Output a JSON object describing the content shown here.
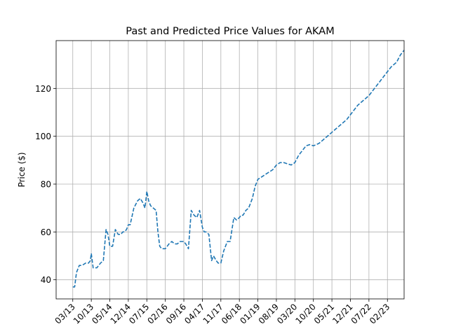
{
  "chart_data": {
    "type": "line",
    "title": "Past and Predicted Price Values for AKAM",
    "xlabel": "",
    "ylabel": "Price ($)",
    "x_ticks": [
      "03/13",
      "10/13",
      "05/14",
      "12/14",
      "07/15",
      "02/16",
      "09/16",
      "04/17",
      "11/17",
      "06/18",
      "01/19",
      "08/19",
      "03/20",
      "10/20",
      "05/21",
      "12/21",
      "07/22",
      "02/23"
    ],
    "y_ticks": [
      40,
      60,
      80,
      100,
      120
    ],
    "ylim": [
      32,
      140
    ],
    "xlim": [
      -0.9,
      17.9
    ],
    "grid": true,
    "series": [
      {
        "line_style": "dashed",
        "color": "#1f77b4",
        "x": [
          0,
          0.1,
          0.2,
          0.35,
          0.5,
          0.7,
          0.85,
          0.95,
          1.0,
          1.1,
          1.3,
          1.5,
          1.65,
          1.8,
          1.9,
          2.0,
          2.15,
          2.3,
          2.45,
          2.6,
          2.7,
          2.8,
          2.9,
          3.0,
          3.1,
          3.3,
          3.5,
          3.65,
          3.8,
          3.9,
          4.0,
          4.1,
          4.2,
          4.35,
          4.5,
          4.6,
          4.7,
          4.8,
          5.0,
          5.2,
          5.35,
          5.5,
          5.65,
          5.8,
          6.0,
          6.1,
          6.25,
          6.4,
          6.55,
          6.7,
          6.85,
          7.0,
          7.1,
          7.2,
          7.35,
          7.5,
          7.6,
          7.75,
          7.85,
          8.0,
          8.15,
          8.35,
          8.5,
          8.7,
          8.85,
          9.0,
          9.1,
          9.2,
          9.35,
          9.5,
          9.7,
          9.85,
          10.0,
          10.2,
          10.4,
          10.6,
          10.8,
          11.0,
          11.2,
          11.4,
          11.6,
          11.8,
          12.0,
          12.2,
          12.4,
          12.6,
          12.8,
          13.0,
          13.3,
          13.6,
          13.9,
          14.2,
          14.5,
          14.8,
          15.1,
          15.4,
          15.7,
          16.0,
          16.3,
          16.6,
          16.9,
          17.2,
          17.5,
          17.7,
          17.9
        ],
        "y": [
          37,
          37,
          43,
          46,
          46,
          47,
          47,
          48,
          51,
          45,
          45,
          47,
          48,
          61,
          59,
          54,
          54,
          61,
          59,
          59,
          60,
          60,
          61,
          63,
          63,
          70,
          73,
          74,
          72,
          70,
          77,
          73,
          71,
          70,
          69,
          60,
          54,
          53,
          53,
          55,
          56,
          55,
          55,
          56,
          56,
          55,
          53,
          69,
          67,
          66,
          69,
          62,
          60,
          60,
          59,
          48,
          50,
          48,
          47,
          47,
          52,
          56,
          56,
          66,
          65,
          66,
          67,
          67,
          69,
          70,
          74,
          79,
          82,
          83,
          84,
          85,
          86,
          88,
          89,
          89,
          88.5,
          88,
          89,
          92,
          94,
          96,
          96.5,
          96,
          97,
          99,
          101,
          103,
          105,
          107,
          110,
          113,
          115,
          117,
          120,
          123,
          126,
          129,
          131,
          134,
          136
        ]
      }
    ]
  }
}
